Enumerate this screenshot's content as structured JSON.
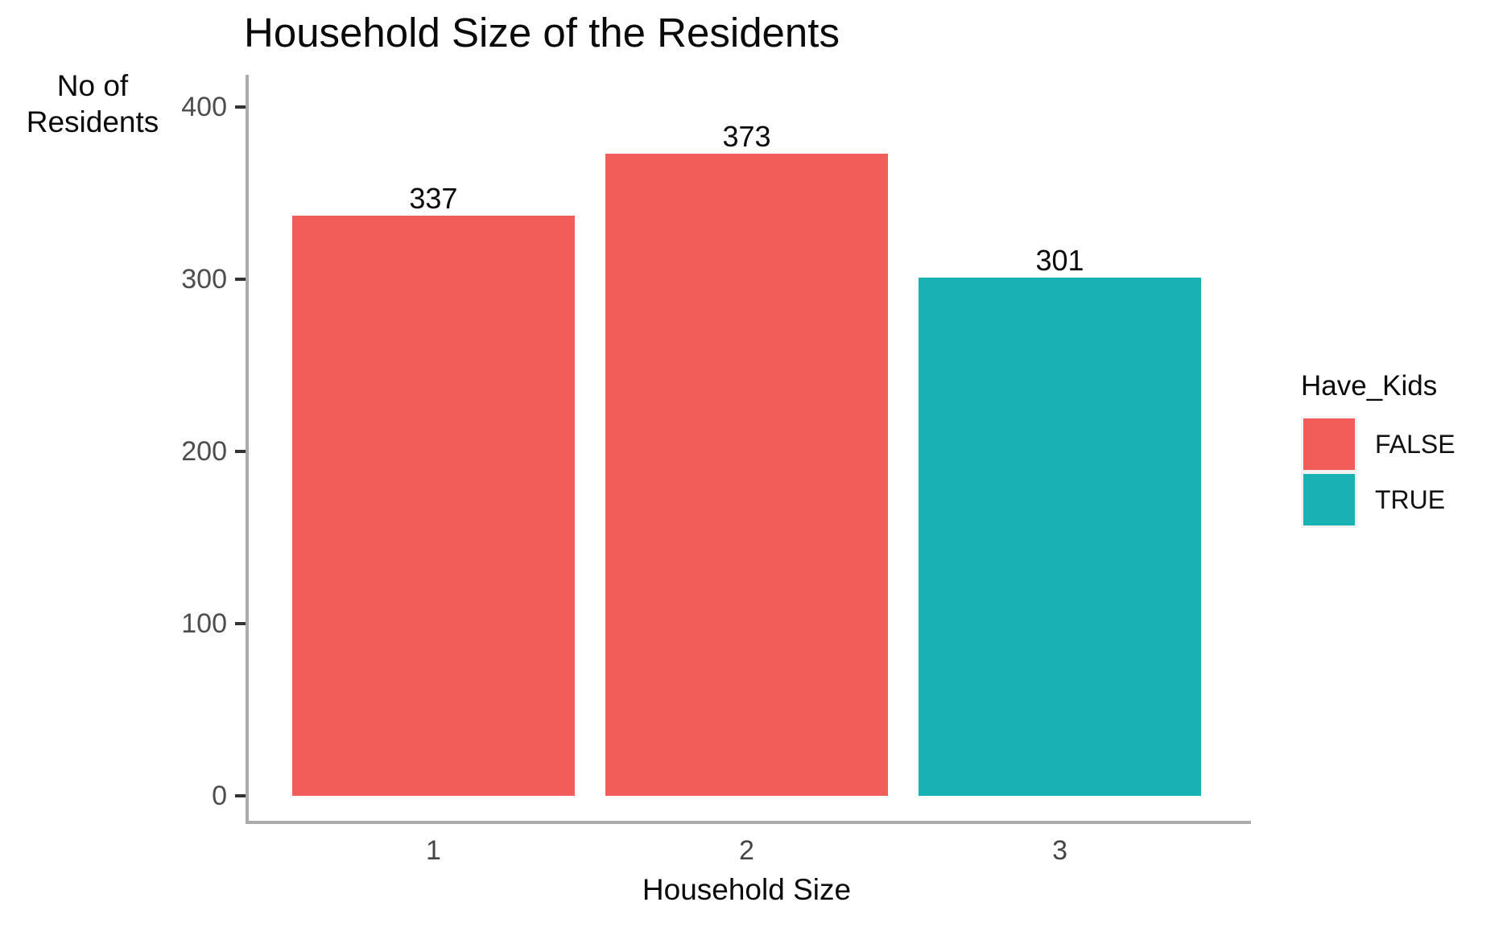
{
  "chart_data": {
    "type": "bar",
    "title": "Household Size of the Residents",
    "xlabel": "Household Size",
    "ylabel": "No of\nResidents",
    "categories": [
      "1",
      "2",
      "3"
    ],
    "series": [
      {
        "name": "No of Residents",
        "values": [
          337,
          373,
          301
        ]
      }
    ],
    "bar_groups": [
      "FALSE",
      "FALSE",
      "TRUE"
    ],
    "bar_value_labels": [
      "337",
      "373",
      "301"
    ],
    "ylim": [
      0,
      400
    ],
    "yticks": [
      "0",
      "100",
      "200",
      "300",
      "400"
    ],
    "grid": false,
    "legend": {
      "title": "Have_Kids",
      "position": "right",
      "items": [
        {
          "label": "FALSE",
          "color": "#f25d59"
        },
        {
          "label": "TRUE",
          "color": "#18b2b5"
        }
      ]
    },
    "colors": {
      "FALSE": "#f25d59",
      "TRUE": "#18b2b5",
      "axis_line": "#ababab",
      "tick_mark": "#333333",
      "tick_label": "#4d4d4d",
      "text": "#0a0a0a",
      "legend_key_background": "#f2f2f2"
    }
  }
}
